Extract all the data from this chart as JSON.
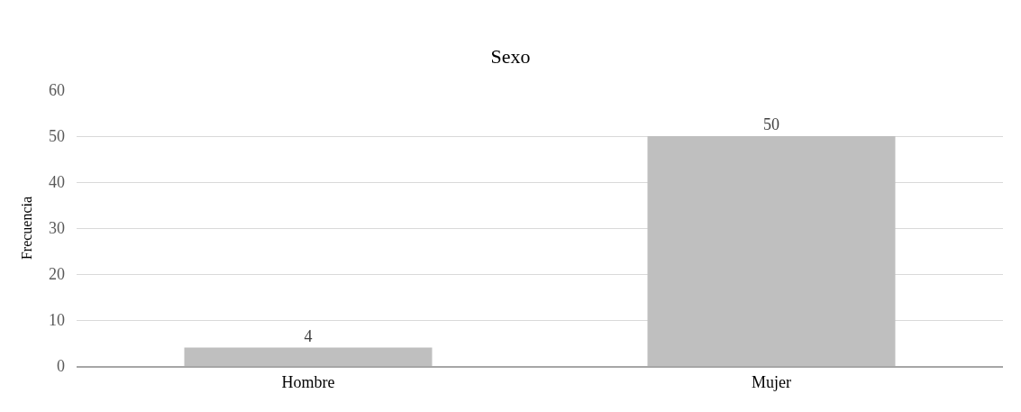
{
  "chart_data": {
    "type": "bar",
    "title": "Sexo",
    "ylabel": "Frecuencia",
    "categories": [
      "Hombre",
      "Mujer"
    ],
    "values": [
      4,
      50
    ],
    "color": "#bfbfbf",
    "ylim": [
      0,
      60
    ],
    "yticks": [
      0,
      10,
      20,
      30,
      40,
      50,
      60
    ],
    "grid": "y",
    "data_labels": true,
    "legend": false
  }
}
